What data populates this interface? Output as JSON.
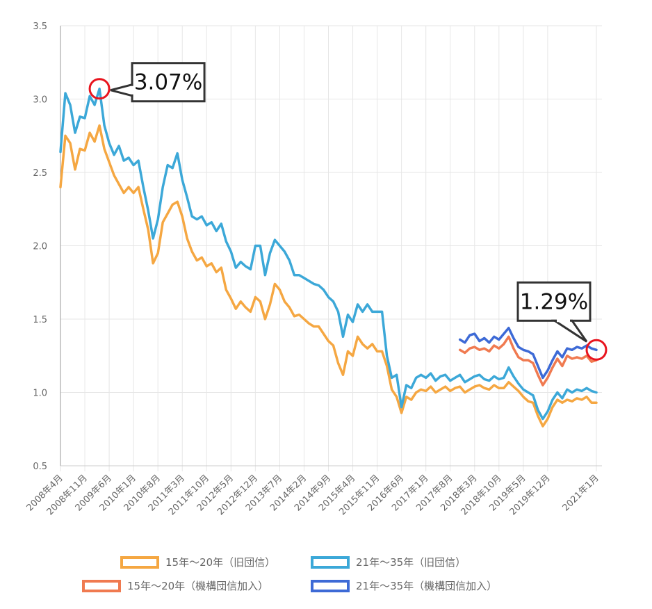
{
  "chart_data": {
    "type": "line",
    "title": "",
    "xlabel": "",
    "ylabel": "",
    "ylim": [
      0.5,
      3.5
    ],
    "yticks": [
      "3.5",
      "3.0",
      "2.5",
      "2.0",
      "1.5",
      "1.0",
      "0.5"
    ],
    "x_tick_labels": [
      "2008年4月",
      "2008年11月",
      "2009年6月",
      "2010年1月",
      "2010年8月",
      "2011年3月",
      "2011年10月",
      "2012年5月",
      "2012年12月",
      "2013年7月",
      "2014年2月",
      "2014年9月",
      "2015年4月",
      "2015年11月",
      "2016年6月",
      "2017年1月",
      "2017年8月",
      "2018年3月",
      "2018年10月",
      "2019年5月",
      "2019年12月",
      "2021年1月"
    ],
    "grid": true,
    "legend_position": "bottom",
    "series": [
      {
        "name": "15年〜20年（旧団信）",
        "color": "#f5a742",
        "points": [
          [
            0,
            2.4
          ],
          [
            1,
            2.75
          ],
          [
            2,
            2.7
          ],
          [
            3,
            2.52
          ],
          [
            4,
            2.66
          ],
          [
            5,
            2.65
          ],
          [
            6,
            2.77
          ],
          [
            7,
            2.71
          ],
          [
            8,
            2.82
          ],
          [
            9,
            2.66
          ],
          [
            10,
            2.57
          ],
          [
            11,
            2.48
          ],
          [
            12,
            2.42
          ],
          [
            13,
            2.36
          ],
          [
            14,
            2.4
          ],
          [
            15,
            2.36
          ],
          [
            16,
            2.4
          ],
          [
            17,
            2.25
          ],
          [
            18,
            2.11
          ],
          [
            19,
            1.88
          ],
          [
            20,
            1.95
          ],
          [
            21,
            2.16
          ],
          [
            22,
            2.22
          ],
          [
            23,
            2.28
          ],
          [
            24,
            2.3
          ],
          [
            25,
            2.2
          ],
          [
            26,
            2.05
          ],
          [
            27,
            1.96
          ],
          [
            28,
            1.9
          ],
          [
            29,
            1.92
          ],
          [
            30,
            1.86
          ],
          [
            31,
            1.88
          ],
          [
            32,
            1.82
          ],
          [
            33,
            1.85
          ],
          [
            34,
            1.7
          ],
          [
            35,
            1.64
          ],
          [
            36,
            1.57
          ],
          [
            37,
            1.62
          ],
          [
            38,
            1.58
          ],
          [
            39,
            1.55
          ],
          [
            40,
            1.65
          ],
          [
            41,
            1.62
          ],
          [
            42,
            1.5
          ],
          [
            43,
            1.6
          ],
          [
            44,
            1.74
          ],
          [
            45,
            1.7
          ],
          [
            46,
            1.62
          ],
          [
            47,
            1.58
          ],
          [
            48,
            1.52
          ],
          [
            49,
            1.53
          ],
          [
            50,
            1.5
          ],
          [
            51,
            1.47
          ],
          [
            52,
            1.45
          ],
          [
            53,
            1.45
          ],
          [
            54,
            1.4
          ],
          [
            55,
            1.35
          ],
          [
            56,
            1.32
          ],
          [
            57,
            1.2
          ],
          [
            58,
            1.12
          ],
          [
            59,
            1.28
          ],
          [
            60,
            1.25
          ],
          [
            61,
            1.38
          ],
          [
            62,
            1.33
          ],
          [
            63,
            1.3
          ],
          [
            64,
            1.33
          ],
          [
            65,
            1.28
          ],
          [
            66,
            1.28
          ],
          [
            67,
            1.18
          ],
          [
            68,
            1.02
          ],
          [
            69,
            0.97
          ],
          [
            70,
            0.86
          ],
          [
            71,
            0.97
          ],
          [
            72,
            0.95
          ],
          [
            73,
            1.0
          ],
          [
            74,
            1.02
          ],
          [
            75,
            1.01
          ],
          [
            76,
            1.04
          ],
          [
            77,
            1.0
          ],
          [
            78,
            1.02
          ],
          [
            79,
            1.04
          ],
          [
            80,
            1.01
          ],
          [
            81,
            1.03
          ],
          [
            82,
            1.04
          ],
          [
            83,
            1.0
          ],
          [
            84,
            1.02
          ],
          [
            85,
            1.04
          ],
          [
            86,
            1.05
          ],
          [
            87,
            1.03
          ],
          [
            88,
            1.02
          ],
          [
            89,
            1.05
          ],
          [
            90,
            1.03
          ],
          [
            91,
            1.03
          ],
          [
            92,
            1.07
          ],
          [
            93,
            1.04
          ],
          [
            94,
            1.01
          ],
          [
            95,
            0.97
          ],
          [
            96,
            0.94
          ],
          [
            97,
            0.93
          ],
          [
            98,
            0.84
          ],
          [
            99,
            0.77
          ],
          [
            100,
            0.82
          ],
          [
            101,
            0.9
          ],
          [
            102,
            0.95
          ],
          [
            103,
            0.93
          ],
          [
            104,
            0.95
          ],
          [
            105,
            0.94
          ],
          [
            106,
            0.96
          ],
          [
            107,
            0.95
          ],
          [
            108,
            0.97
          ],
          [
            109,
            0.93
          ],
          [
            110,
            0.93
          ]
        ]
      },
      {
        "name": "21年〜35年（旧団信）",
        "color": "#3ca8d8",
        "points": [
          [
            0,
            2.64
          ],
          [
            1,
            3.04
          ],
          [
            2,
            2.96
          ],
          [
            3,
            2.77
          ],
          [
            4,
            2.88
          ],
          [
            5,
            2.87
          ],
          [
            6,
            3.02
          ],
          [
            7,
            2.96
          ],
          [
            8,
            3.07
          ],
          [
            9,
            2.82
          ],
          [
            10,
            2.7
          ],
          [
            11,
            2.62
          ],
          [
            12,
            2.68
          ],
          [
            13,
            2.58
          ],
          [
            14,
            2.6
          ],
          [
            15,
            2.55
          ],
          [
            16,
            2.58
          ],
          [
            17,
            2.4
          ],
          [
            18,
            2.24
          ],
          [
            19,
            2.05
          ],
          [
            20,
            2.18
          ],
          [
            21,
            2.4
          ],
          [
            22,
            2.55
          ],
          [
            23,
            2.53
          ],
          [
            24,
            2.63
          ],
          [
            25,
            2.45
          ],
          [
            26,
            2.33
          ],
          [
            27,
            2.2
          ],
          [
            28,
            2.18
          ],
          [
            29,
            2.2
          ],
          [
            30,
            2.14
          ],
          [
            31,
            2.16
          ],
          [
            32,
            2.1
          ],
          [
            33,
            2.15
          ],
          [
            34,
            2.03
          ],
          [
            35,
            1.96
          ],
          [
            36,
            1.85
          ],
          [
            37,
            1.89
          ],
          [
            38,
            1.86
          ],
          [
            39,
            1.84
          ],
          [
            40,
            2.0
          ],
          [
            41,
            2.0
          ],
          [
            42,
            1.8
          ],
          [
            43,
            1.95
          ],
          [
            44,
            2.04
          ],
          [
            45,
            2.0
          ],
          [
            46,
            1.96
          ],
          [
            47,
            1.9
          ],
          [
            48,
            1.8
          ],
          [
            49,
            1.8
          ],
          [
            50,
            1.78
          ],
          [
            51,
            1.76
          ],
          [
            52,
            1.74
          ],
          [
            53,
            1.73
          ],
          [
            54,
            1.7
          ],
          [
            55,
            1.65
          ],
          [
            56,
            1.62
          ],
          [
            57,
            1.55
          ],
          [
            58,
            1.38
          ],
          [
            59,
            1.53
          ],
          [
            60,
            1.48
          ],
          [
            61,
            1.6
          ],
          [
            62,
            1.55
          ],
          [
            63,
            1.6
          ],
          [
            64,
            1.55
          ],
          [
            65,
            1.55
          ],
          [
            66,
            1.55
          ],
          [
            67,
            1.25
          ],
          [
            68,
            1.1
          ],
          [
            69,
            1.12
          ],
          [
            70,
            0.9
          ],
          [
            71,
            1.05
          ],
          [
            72,
            1.03
          ],
          [
            73,
            1.1
          ],
          [
            74,
            1.12
          ],
          [
            75,
            1.1
          ],
          [
            76,
            1.13
          ],
          [
            77,
            1.08
          ],
          [
            78,
            1.11
          ],
          [
            79,
            1.12
          ],
          [
            80,
            1.08
          ],
          [
            81,
            1.1
          ],
          [
            82,
            1.12
          ],
          [
            83,
            1.07
          ],
          [
            84,
            1.09
          ],
          [
            85,
            1.11
          ],
          [
            86,
            1.12
          ],
          [
            87,
            1.09
          ],
          [
            88,
            1.08
          ],
          [
            89,
            1.11
          ],
          [
            90,
            1.09
          ],
          [
            91,
            1.1
          ],
          [
            92,
            1.17
          ],
          [
            93,
            1.11
          ],
          [
            94,
            1.06
          ],
          [
            95,
            1.02
          ],
          [
            96,
            1.0
          ],
          [
            97,
            0.98
          ],
          [
            98,
            0.88
          ],
          [
            99,
            0.82
          ],
          [
            100,
            0.87
          ],
          [
            101,
            0.95
          ],
          [
            102,
            1.0
          ],
          [
            103,
            0.96
          ],
          [
            104,
            1.02
          ],
          [
            105,
            1.0
          ],
          [
            106,
            1.02
          ],
          [
            107,
            1.01
          ],
          [
            108,
            1.03
          ],
          [
            109,
            1.01
          ],
          [
            110,
            1.0
          ]
        ]
      },
      {
        "name": "15年〜20年（機構団信加入）",
        "color": "#f07a50",
        "points": [
          [
            82,
            1.29
          ],
          [
            83,
            1.27
          ],
          [
            84,
            1.3
          ],
          [
            85,
            1.31
          ],
          [
            86,
            1.29
          ],
          [
            87,
            1.3
          ],
          [
            88,
            1.28
          ],
          [
            89,
            1.32
          ],
          [
            90,
            1.3
          ],
          [
            91,
            1.33
          ],
          [
            92,
            1.38
          ],
          [
            93,
            1.3
          ],
          [
            94,
            1.24
          ],
          [
            95,
            1.22
          ],
          [
            96,
            1.22
          ],
          [
            97,
            1.2
          ],
          [
            98,
            1.12
          ],
          [
            99,
            1.05
          ],
          [
            100,
            1.1
          ],
          [
            101,
            1.17
          ],
          [
            102,
            1.23
          ],
          [
            103,
            1.18
          ],
          [
            104,
            1.25
          ],
          [
            105,
            1.23
          ],
          [
            106,
            1.24
          ],
          [
            107,
            1.23
          ],
          [
            108,
            1.25
          ],
          [
            109,
            1.21
          ],
          [
            110,
            1.22
          ]
        ]
      },
      {
        "name": "21年〜35年（機構団信加入）",
        "color": "#3d6ad6",
        "points": [
          [
            82,
            1.36
          ],
          [
            83,
            1.34
          ],
          [
            84,
            1.39
          ],
          [
            85,
            1.4
          ],
          [
            86,
            1.35
          ],
          [
            87,
            1.37
          ],
          [
            88,
            1.34
          ],
          [
            89,
            1.38
          ],
          [
            90,
            1.36
          ],
          [
            91,
            1.4
          ],
          [
            92,
            1.44
          ],
          [
            93,
            1.37
          ],
          [
            94,
            1.31
          ],
          [
            95,
            1.29
          ],
          [
            96,
            1.28
          ],
          [
            97,
            1.26
          ],
          [
            98,
            1.18
          ],
          [
            99,
            1.1
          ],
          [
            100,
            1.15
          ],
          [
            101,
            1.22
          ],
          [
            102,
            1.28
          ],
          [
            103,
            1.24
          ],
          [
            104,
            1.3
          ],
          [
            105,
            1.29
          ],
          [
            106,
            1.31
          ],
          [
            107,
            1.3
          ],
          [
            108,
            1.32
          ],
          [
            109,
            1.3
          ],
          [
            110,
            1.29
          ]
        ]
      }
    ],
    "annotations": [
      {
        "text": "3.07%",
        "x": 8,
        "y": 3.07
      },
      {
        "text": "1.29%",
        "x": 110,
        "y": 1.29
      }
    ]
  }
}
